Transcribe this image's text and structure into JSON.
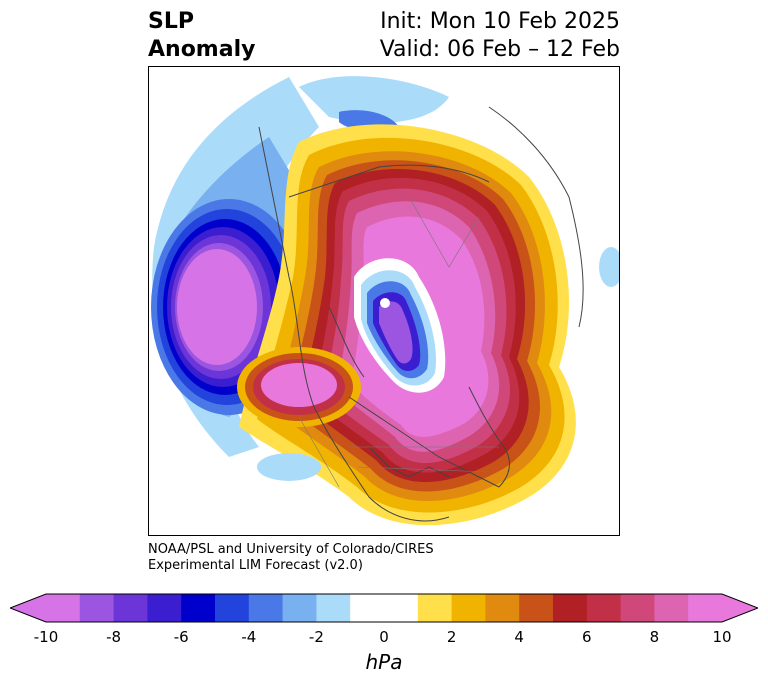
{
  "title": {
    "left_line1": "SLP",
    "left_line2": "Anomaly",
    "right_line1": "Init: Mon 10 Feb 2025",
    "right_line2": "Valid: 06 Feb – 12 Feb"
  },
  "credit": {
    "line1": "NOAA/PSL and University of Colorado/CIRES",
    "line2": "Experimental LIM Forecast (v2.0)"
  },
  "colorbar": {
    "unit": "hPa",
    "ticks": [
      "-10",
      "-8",
      "-6",
      "-4",
      "-2",
      "0",
      "2",
      "4",
      "6",
      "8",
      "10"
    ],
    "colors": [
      "#d673e6",
      "#9b55e0",
      "#6b35d8",
      "#3a1ed0",
      "#0000cc",
      "#2244dd",
      "#4a78e6",
      "#78b0f0",
      "#aadcfa",
      "#ffffff",
      "#ffffff",
      "#ffe04a",
      "#f0b400",
      "#e08a10",
      "#c85218",
      "#b02024",
      "#c23048",
      "#d0487a",
      "#dc64b0",
      "#e878dc"
    ],
    "min_color": "#d673e6",
    "max_color": "#e878dc"
  }
}
